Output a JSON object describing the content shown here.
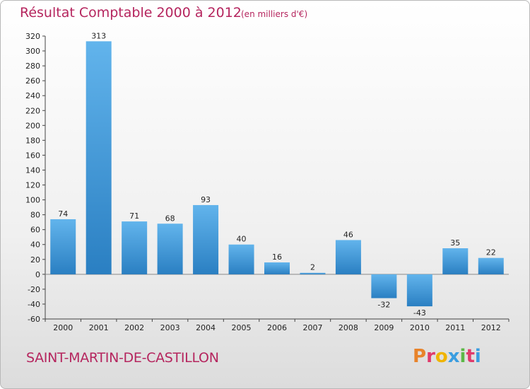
{
  "chart_data": {
    "type": "bar",
    "title": "Résultat Comptable 2000 à 2012",
    "subtitle": "(en milliers d'€)",
    "categories": [
      "2000",
      "2001",
      "2002",
      "2003",
      "2004",
      "2005",
      "2006",
      "2007",
      "2008",
      "2009",
      "2010",
      "2011",
      "2012"
    ],
    "values": [
      74,
      313,
      71,
      68,
      93,
      40,
      16,
      2,
      46,
      -32,
      -43,
      35,
      22
    ],
    "ylim": [
      -60,
      320
    ],
    "ystep": 20,
    "xlabel": "",
    "ylabel": "",
    "grid": false
  },
  "footer": {
    "town": "SAINT-MARTIN-DE-CASTILLON",
    "brand_letters": [
      "P",
      "r",
      "o",
      "x",
      "i",
      "t",
      "i"
    ]
  },
  "colors": {
    "title": "#b5255e",
    "bar_light": "#62b4ec",
    "bar_dark": "#2a7fc2",
    "brand": [
      "#e8832a",
      "#e03a6b",
      "#f0b400",
      "#3a9de0",
      "#5cb847",
      "#e03a6b",
      "#3a9de0"
    ]
  }
}
